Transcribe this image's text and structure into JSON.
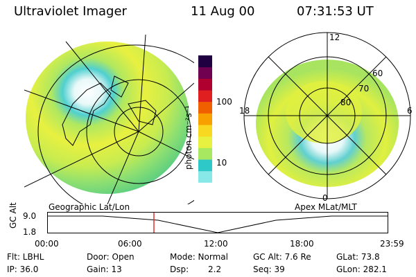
{
  "header": {
    "instrument": "Ultraviolet Imager",
    "date": "11 Aug 00",
    "time": "07:31:53 UT"
  },
  "left_panel": {
    "label": "Geographic Lat/Lon"
  },
  "right_panel": {
    "label": "Apex MLat/MLT",
    "mlt_labels": {
      "top": "12",
      "left": "18",
      "right": "6",
      "bottom": "0"
    },
    "mlat_labels": [
      "60",
      "70",
      "80"
    ]
  },
  "colorbar": {
    "unit_label": "photon cm⁻²s⁻¹",
    "ticks": [
      "100",
      "10"
    ],
    "colors": [
      "#ffffff",
      "#88e8e8",
      "#2ec8c8",
      "#a8e860",
      "#e8f040",
      "#f8d820",
      "#f8a000",
      "#f06000",
      "#e02020",
      "#b00030",
      "#700050",
      "#200040"
    ]
  },
  "altitude_plot": {
    "axis_label": "GC Alt",
    "y_ticks": [
      "9.0",
      "1.8"
    ],
    "x_ticks": [
      "00:00",
      "06:00",
      "12:00",
      "18:00",
      "23:59"
    ],
    "current_time_fraction": 0.313,
    "marker_color": "#e03030"
  },
  "status": {
    "flt": "Flt: LBHL",
    "ip": "IP: 36.0",
    "door": "Door: Open",
    "gain": "Gain: 13",
    "mode": "Mode: Normal",
    "dsp_label": "Dsp:",
    "dsp_value": "2.2",
    "gc_alt": "GC Alt: 7.6 Re",
    "seq": "Seq: 39",
    "glat": "GLat: 73.8",
    "glon": "GLon: 282.1"
  }
}
